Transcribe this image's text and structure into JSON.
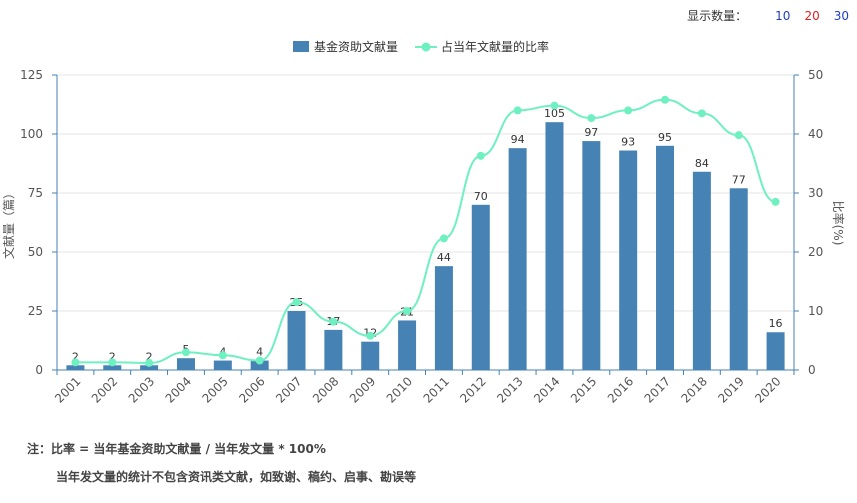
{
  "controls": {
    "label": "显示数量：",
    "options": [
      "10",
      "20",
      "30"
    ]
  },
  "colors": {
    "bar": "#4682b4",
    "line": "#6ff0c0",
    "grid": "#e6e6e6",
    "axis": "#4682b4"
  },
  "chart_data": {
    "type": "bar",
    "categories": [
      "2001",
      "2002",
      "2003",
      "2004",
      "2005",
      "2006",
      "2007",
      "2008",
      "2009",
      "2010",
      "2011",
      "2012",
      "2013",
      "2014",
      "2015",
      "2016",
      "2017",
      "2018",
      "2019",
      "2020"
    ],
    "series": [
      {
        "name": "基金资助文献量",
        "kind": "bar",
        "axis": "left",
        "values": [
          2,
          2,
          2,
          5,
          4,
          4,
          25,
          17,
          12,
          21,
          44,
          70,
          94,
          105,
          97,
          93,
          95,
          84,
          77,
          16
        ]
      },
      {
        "name": "占当年文献量的比率",
        "kind": "line",
        "axis": "right",
        "values": [
          1.3,
          1.3,
          1.2,
          3.0,
          2.5,
          1.6,
          11.5,
          8.2,
          5.8,
          10.0,
          22.3,
          36.3,
          44.0,
          44.8,
          42.7,
          44.0,
          45.8,
          43.5,
          39.8,
          28.5
        ]
      }
    ],
    "ylabel": "文献量（篇）",
    "y2label": "比率(%)",
    "yticks": [
      "0",
      "25",
      "50",
      "75",
      "100",
      "125"
    ],
    "y2ticks": [
      "0",
      "10",
      "20",
      "30",
      "40",
      "50"
    ],
    "ylim": [
      0,
      125
    ],
    "y2lim": [
      0,
      50
    ],
    "legend_position": "top-center"
  },
  "notes": {
    "line1": "注：比率 = 当年基金资助文献量 / 当年发文量 * 100%",
    "line2": "当年发文量的统计不包含资讯类文献，如致谢、稿约、启事、勘误等"
  }
}
